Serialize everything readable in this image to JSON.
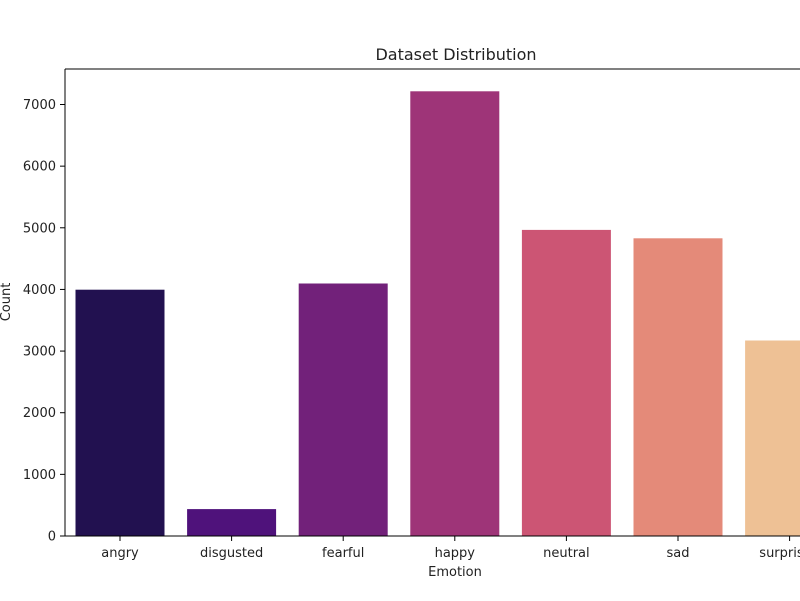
{
  "chart_data": {
    "type": "bar",
    "title": "Dataset Distribution",
    "xlabel": "Emotion",
    "ylabel": "Count",
    "categories": [
      "angry",
      "disgusted",
      "fearful",
      "happy",
      "neutral",
      "sad",
      "surprised"
    ],
    "values": [
      3995,
      436,
      4097,
      7215,
      4965,
      4830,
      3171
    ],
    "colors": [
      "#221150",
      "#4f127b",
      "#72217a",
      "#9e3478",
      "#cc5574",
      "#e48a79",
      "#eec195"
    ],
    "ylim": [
      0,
      7576
    ],
    "yticks": [
      0,
      1000,
      2000,
      3000,
      4000,
      5000,
      6000,
      7000
    ],
    "ytick_labels": [
      "0",
      "1000",
      "2000",
      "3000",
      "4000",
      "5000",
      "6000",
      "7000"
    ],
    "grid": false,
    "legend": "none"
  }
}
